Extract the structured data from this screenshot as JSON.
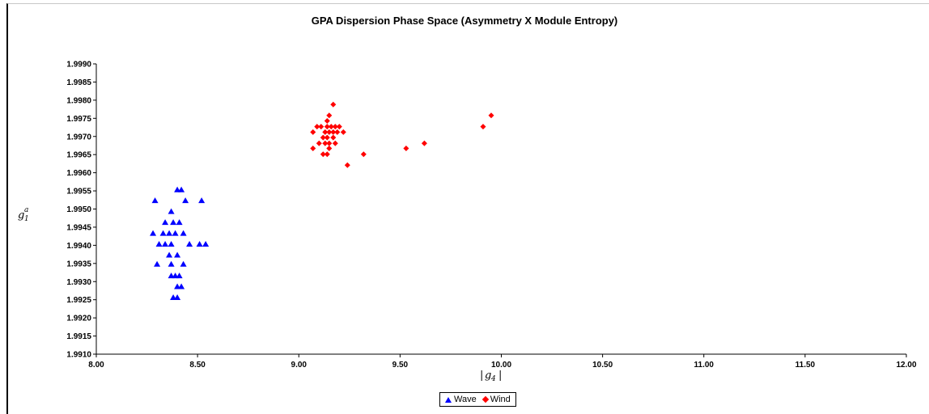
{
  "chart_data": {
    "type": "scatter",
    "title": "GPA Dispersion Phase Space (Asymmetry X Module Entropy)",
    "xlabel": "|g4|",
    "ylabel": "g1a",
    "xlim": [
      8.0,
      12.0
    ],
    "ylim": [
      1.991,
      1.999
    ],
    "x_ticks": [
      "8.00",
      "8.50",
      "9.00",
      "9.50",
      "10.00",
      "10.50",
      "11.00",
      "11.50",
      "12.00"
    ],
    "y_ticks": [
      "1.9910",
      "1.9915",
      "1.9920",
      "1.9925",
      "1.9930",
      "1.9935",
      "1.9940",
      "1.9945",
      "1.9950",
      "1.9955",
      "1.9960",
      "1.9965",
      "1.9970",
      "1.9975",
      "1.9980",
      "1.9985",
      "1.9990"
    ],
    "grid": false,
    "legend": "bottom-center",
    "series": [
      {
        "name": "Wave",
        "color": "#0000ff",
        "marker": "triangle",
        "points": [
          [
            8.4,
            1.99553
          ],
          [
            8.42,
            1.99553
          ],
          [
            8.29,
            1.99523
          ],
          [
            8.52,
            1.99523
          ],
          [
            8.44,
            1.99523
          ],
          [
            8.37,
            1.99493
          ],
          [
            8.34,
            1.99463
          ],
          [
            8.38,
            1.99463
          ],
          [
            8.41,
            1.99463
          ],
          [
            8.28,
            1.99433
          ],
          [
            8.33,
            1.99433
          ],
          [
            8.36,
            1.99433
          ],
          [
            8.39,
            1.99433
          ],
          [
            8.43,
            1.99433
          ],
          [
            8.31,
            1.99403
          ],
          [
            8.34,
            1.99403
          ],
          [
            8.37,
            1.99403
          ],
          [
            8.46,
            1.99403
          ],
          [
            8.51,
            1.99403
          ],
          [
            8.54,
            1.99403
          ],
          [
            8.36,
            1.99373
          ],
          [
            8.4,
            1.99373
          ],
          [
            8.3,
            1.99348
          ],
          [
            8.37,
            1.99348
          ],
          [
            8.43,
            1.99348
          ],
          [
            8.37,
            1.99316
          ],
          [
            8.39,
            1.99316
          ],
          [
            8.41,
            1.99316
          ],
          [
            8.4,
            1.99286
          ],
          [
            8.42,
            1.99286
          ],
          [
            8.38,
            1.99256
          ],
          [
            8.4,
            1.99256
          ]
        ]
      },
      {
        "name": "Wind",
        "color": "#ff0000",
        "marker": "diamond",
        "points": [
          [
            9.17,
            1.99788
          ],
          [
            9.95,
            1.99758
          ],
          [
            9.15,
            1.99758
          ],
          [
            9.14,
            1.99743
          ],
          [
            9.91,
            1.99727
          ],
          [
            9.09,
            1.99727
          ],
          [
            9.11,
            1.99727
          ],
          [
            9.14,
            1.99727
          ],
          [
            9.16,
            1.99727
          ],
          [
            9.18,
            1.99727
          ],
          [
            9.2,
            1.99727
          ],
          [
            9.07,
            1.99712
          ],
          [
            9.13,
            1.99712
          ],
          [
            9.15,
            1.99712
          ],
          [
            9.17,
            1.99712
          ],
          [
            9.19,
            1.99712
          ],
          [
            9.22,
            1.99712
          ],
          [
            9.12,
            1.99697
          ],
          [
            9.14,
            1.99697
          ],
          [
            9.17,
            1.99697
          ],
          [
            9.62,
            1.99681
          ],
          [
            9.1,
            1.99681
          ],
          [
            9.13,
            1.99681
          ],
          [
            9.15,
            1.99681
          ],
          [
            9.18,
            1.99681
          ],
          [
            9.53,
            1.99667
          ],
          [
            9.07,
            1.99667
          ],
          [
            9.15,
            1.99667
          ],
          [
            9.32,
            1.99651
          ],
          [
            9.12,
            1.99651
          ],
          [
            9.14,
            1.99651
          ],
          [
            9.24,
            1.99621
          ]
        ]
      }
    ]
  }
}
